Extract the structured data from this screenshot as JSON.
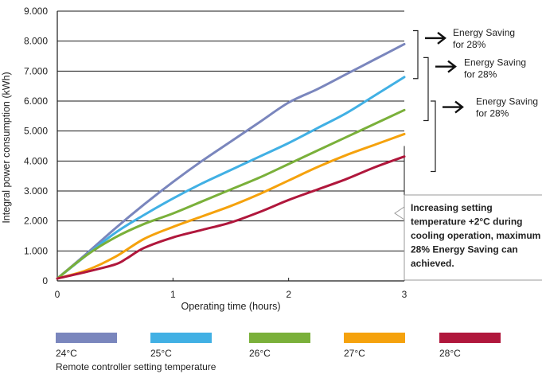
{
  "chart_data": {
    "type": "line",
    "title": "",
    "xlabel": "Operating time (hours)",
    "ylabel": "Integral power consumption (kWh)",
    "xlim": [
      0,
      3
    ],
    "ylim": [
      0,
      9
    ],
    "x_ticks": [
      "0",
      "1",
      "2",
      "3"
    ],
    "y_ticks": [
      "0",
      "1.000",
      "2.000",
      "3.000",
      "4.000",
      "5.000",
      "6.000",
      "7.000",
      "8.000",
      "9.000"
    ],
    "grid": "horizontal",
    "legend_title": "Remote controller setting temperature",
    "legend_position": "bottom",
    "series": [
      {
        "name": "24°C",
        "color": "#7a86bd",
        "x": [
          0,
          0.25,
          0.5,
          0.75,
          1.0,
          1.25,
          1.5,
          1.75,
          2.0,
          2.25,
          2.5,
          2.75,
          3.0
        ],
        "y": [
          0.08,
          0.9,
          1.75,
          2.55,
          3.3,
          4.0,
          4.65,
          5.3,
          5.95,
          6.4,
          6.9,
          7.4,
          7.9
        ]
      },
      {
        "name": "25°C",
        "color": "#41b0e4",
        "x": [
          0,
          0.25,
          0.5,
          0.75,
          1.0,
          1.25,
          1.5,
          1.75,
          2.0,
          2.25,
          2.5,
          2.75,
          3.0
        ],
        "y": [
          0.08,
          0.85,
          1.6,
          2.2,
          2.75,
          3.25,
          3.7,
          4.15,
          4.6,
          5.1,
          5.6,
          6.2,
          6.8
        ]
      },
      {
        "name": "26°C",
        "color": "#7ab03a",
        "x": [
          0,
          0.25,
          0.5,
          0.75,
          1.0,
          1.25,
          1.5,
          1.75,
          2.0,
          2.25,
          2.5,
          2.75,
          3.0
        ],
        "y": [
          0.08,
          0.85,
          1.45,
          1.9,
          2.25,
          2.65,
          3.05,
          3.45,
          3.9,
          4.35,
          4.8,
          5.25,
          5.7
        ]
      },
      {
        "name": "27°C",
        "color": "#f5a20d",
        "x": [
          0,
          0.25,
          0.5,
          0.75,
          1.0,
          1.25,
          1.5,
          1.75,
          2.0,
          2.25,
          2.5,
          2.75,
          3.0
        ],
        "y": [
          0.08,
          0.35,
          0.8,
          1.4,
          1.8,
          2.15,
          2.5,
          2.9,
          3.35,
          3.8,
          4.2,
          4.55,
          4.9
        ]
      },
      {
        "name": "28°C",
        "color": "#b0173c",
        "x": [
          0,
          0.25,
          0.5,
          0.6,
          0.75,
          1.0,
          1.25,
          1.5,
          1.75,
          2.0,
          2.25,
          2.5,
          2.75,
          3.0
        ],
        "y": [
          0.08,
          0.3,
          0.55,
          0.75,
          1.1,
          1.45,
          1.7,
          1.95,
          2.3,
          2.7,
          3.05,
          3.4,
          3.8,
          4.15
        ]
      }
    ],
    "annotations": [
      {
        "lines": [
          "Energy Saving",
          "for 28%"
        ]
      },
      {
        "lines": [
          "Energy Saving",
          "for 28%"
        ]
      },
      {
        "lines": [
          "Energy Saving",
          "for 28%"
        ]
      }
    ],
    "callout": {
      "lines": [
        "Increasing setting",
        "temperature +2°C during",
        "cooling operation, maximum",
        "28% Energy Saving can",
        "achieved."
      ]
    }
  }
}
